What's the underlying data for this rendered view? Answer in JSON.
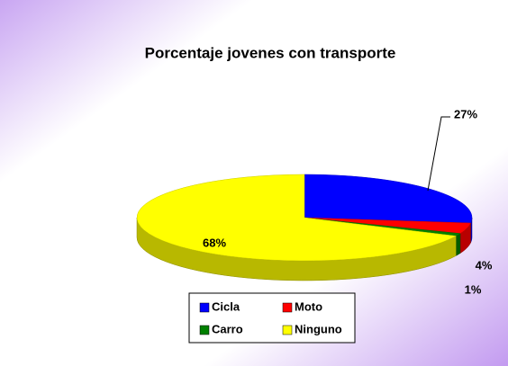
{
  "chart_data": {
    "type": "pie3d",
    "title": "Porcentaje jovenes con transporte",
    "categories": [
      "Cicla",
      "Moto",
      "Carro",
      "Ninguno"
    ],
    "values": [
      27,
      4,
      1,
      68
    ],
    "value_labels": [
      "27%",
      "4%",
      "1%",
      "68%"
    ],
    "colors": [
      "#0000ff",
      "#ff0000",
      "#008000",
      "#ffff00"
    ],
    "legend": "bottom"
  }
}
